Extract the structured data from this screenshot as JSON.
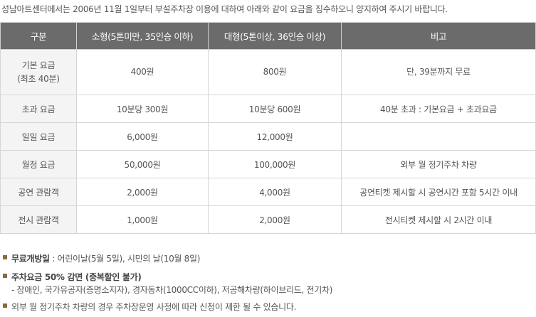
{
  "intro": "성남아트센터에서는 2006년 11월 1일부터 부설주차장 이용에 대하여 아래와 같이 요금을 징수하오니 양지하여 주시기 바랍니다.",
  "table": {
    "headers": [
      "구분",
      "소형(5톤미만, 35인승 이하)",
      "대형(5톤이상, 36인승 이상)",
      "비고"
    ],
    "rows": [
      {
        "category_line1": "기본 요금",
        "category_line2": "(최초 40분)",
        "small": "400원",
        "large": "800원",
        "remark": "단, 39분까지 무료"
      },
      {
        "category_line1": "초과 요금",
        "category_line2": "",
        "small": "10분당 300원",
        "large": "10분당 600원",
        "remark": "40분 초과 : 기본요금 + 초과요금"
      },
      {
        "category_line1": "일일 요금",
        "category_line2": "",
        "small": "6,000원",
        "large": "12,000원",
        "remark": ""
      },
      {
        "category_line1": "월정 요금",
        "category_line2": "",
        "small": "50,000원",
        "large": "100,000원",
        "remark": "외부 월 정기주차 차량"
      },
      {
        "category_line1": "공연 관람객",
        "category_line2": "",
        "small": "2,000원",
        "large": "4,000원",
        "remark": "공연티켓 제시할 시 공연시간 포함 5시간 이내"
      },
      {
        "category_line1": "전시 관람객",
        "category_line2": "",
        "small": "1,000원",
        "large": "2,000원",
        "remark": "전시티켓 제시할 시 2시간 이내"
      }
    ]
  },
  "notes": {
    "free_label": "무료개방일",
    "free_text": " : 어린이날(5월 5일), 시민의 날(10월 8일)",
    "discount_label": "주차요금 50% 감면 (중복할인 불가)",
    "discount_detail": "- 장애인, 국가유공자(증명소지자), 경자동차(1000CC이하), 저공해차량(하이브리드, 전기차)",
    "monthly_notice": "외부 월 정기주차 차량의 경우 주차장운영 사정에 따라 신청이 제한 될 수 있습니다."
  },
  "colors": {
    "header_bg": "#6b6b6b",
    "bullet": "#8b6a3e",
    "text": "#555555"
  }
}
